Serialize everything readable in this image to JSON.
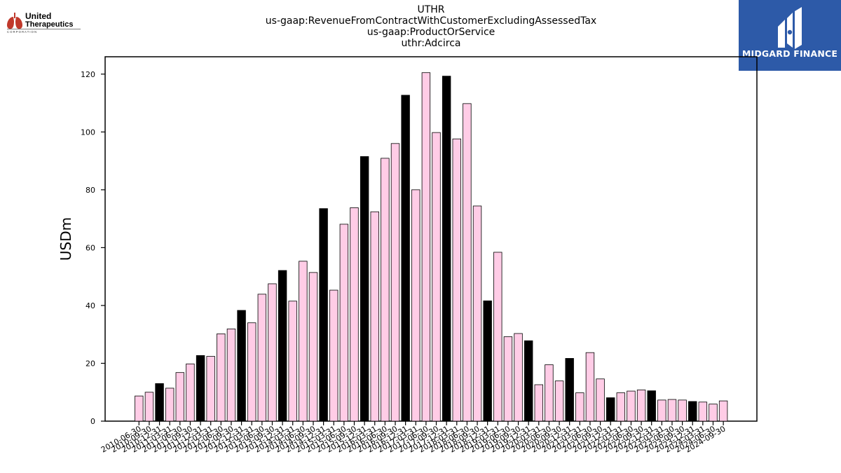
{
  "header": {
    "title_lines": [
      "UTHR",
      "us-gaap:RevenueFromContractWithCustomerExcludingAssessedTax",
      "us-gaap:ProductOrService",
      "uthr:Adcirca"
    ]
  },
  "logo": {
    "line1": "United",
    "line2": "Therapeutics",
    "line3": "C O R P O R A T I O N",
    "icon": "lungs-icon",
    "color": "#c0392b"
  },
  "brand": {
    "name": "MIDGARD FINANCE",
    "icon": "midgard-logo-icon",
    "color": "#2d5aa8"
  },
  "colors": {
    "quarter_fill": "#ffcce6",
    "annual_fill": "#000000",
    "bar_edge": "#000000"
  },
  "chart_data": {
    "type": "bar",
    "ylabel": "USDm",
    "xlabel": "",
    "ylim": [
      0,
      126
    ],
    "yticks": [
      0,
      20,
      40,
      60,
      80,
      100,
      120
    ],
    "grid": false,
    "categories": [
      "2010-06-30",
      "2010-09-30",
      "2010-12-31",
      "2011-03-31",
      "2011-06-30",
      "2011-09-30",
      "2011-12-31",
      "2012-03-31",
      "2012-06-30",
      "2012-09-30",
      "2012-12-31",
      "2013-03-31",
      "2013-06-30",
      "2013-09-30",
      "2013-12-31",
      "2014-03-31",
      "2014-06-30",
      "2014-09-30",
      "2014-12-31",
      "2015-03-31",
      "2015-06-30",
      "2015-09-30",
      "2015-12-31",
      "2016-03-31",
      "2016-06-30",
      "2016-09-30",
      "2016-12-31",
      "2017-03-31",
      "2017-06-30",
      "2017-09-30",
      "2017-12-31",
      "2018-03-31",
      "2018-06-30",
      "2018-09-30",
      "2018-12-31",
      "2019-03-31",
      "2019-06-30",
      "2019-09-30",
      "2019-12-31",
      "2020-03-31",
      "2020-06-30",
      "2020-09-30",
      "2020-12-31",
      "2021-03-31",
      "2021-06-30",
      "2021-09-30",
      "2021-12-31",
      "2022-03-31",
      "2022-06-30",
      "2022-09-30",
      "2022-12-31",
      "2023-03-31",
      "2023-06-30",
      "2023-09-30",
      "2023-12-31",
      "2024-03-31",
      "2024-06-30",
      "2024-09-30"
    ],
    "values": [
      8.7,
      10.0,
      13.0,
      11.4,
      16.8,
      19.8,
      22.7,
      22.4,
      30.2,
      31.9,
      38.3,
      34.0,
      43.9,
      47.5,
      52.1,
      41.5,
      55.3,
      51.4,
      73.5,
      45.3,
      68.1,
      73.8,
      91.5,
      72.4,
      90.9,
      96.0,
      112.7,
      80.0,
      120.5,
      99.8,
      119.3,
      97.6,
      109.8,
      74.4,
      41.6,
      58.4,
      29.2,
      30.3,
      27.8,
      12.6,
      19.5,
      13.9,
      21.7,
      9.8,
      23.7,
      14.6,
      8.1,
      9.8,
      10.4,
      10.8,
      10.5,
      7.3,
      7.5,
      7.3,
      6.8,
      6.6,
      5.9,
      7.0
    ],
    "annual_flags": [
      false,
      false,
      true,
      false,
      false,
      false,
      true,
      false,
      false,
      false,
      true,
      false,
      false,
      false,
      true,
      false,
      false,
      false,
      true,
      false,
      false,
      false,
      true,
      false,
      false,
      false,
      true,
      false,
      false,
      false,
      true,
      false,
      false,
      false,
      true,
      false,
      false,
      false,
      true,
      false,
      false,
      false,
      true,
      false,
      false,
      false,
      true,
      false,
      false,
      false,
      true,
      false,
      false,
      false,
      true,
      false,
      false,
      false
    ]
  }
}
